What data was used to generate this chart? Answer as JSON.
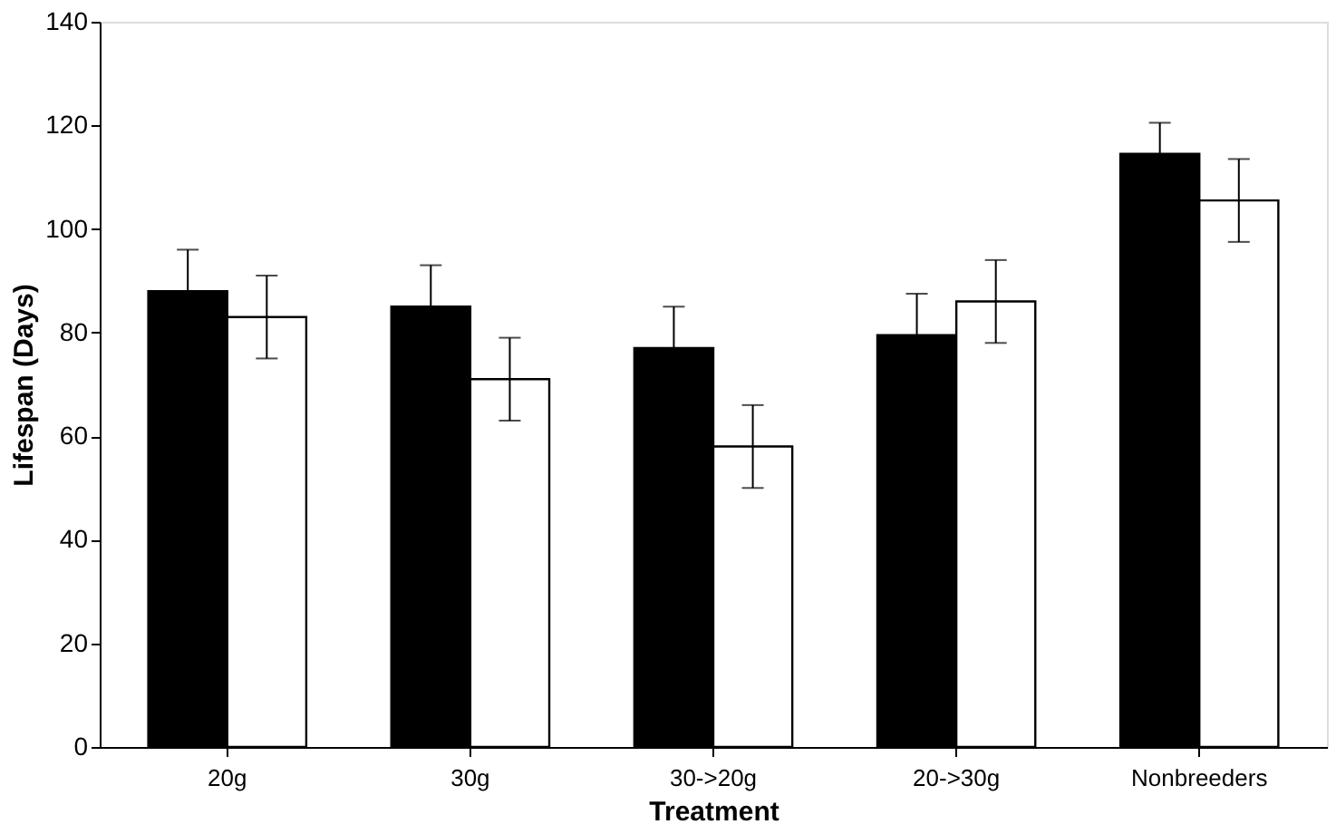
{
  "chart_data": {
    "type": "bar",
    "xlabel": "Treatment",
    "ylabel": "Lifespan (Days)",
    "categories": [
      "20g",
      "30g",
      "30->20g",
      "20->30g",
      "Nonbreeders"
    ],
    "series": [
      {
        "color": "#000000",
        "values": [
          88,
          85,
          77,
          79.5,
          114.5
        ],
        "errors": [
          8,
          8,
          8,
          8,
          6
        ]
      },
      {
        "color": "#ffffff",
        "values": [
          83,
          71,
          58,
          86,
          105.5
        ],
        "errors": [
          8,
          8,
          8,
          8,
          8
        ]
      }
    ],
    "ylim": [
      0,
      140
    ],
    "yticks": [
      0,
      20,
      40,
      60,
      80,
      100,
      120,
      140
    ],
    "grid": false,
    "legend": false
  }
}
